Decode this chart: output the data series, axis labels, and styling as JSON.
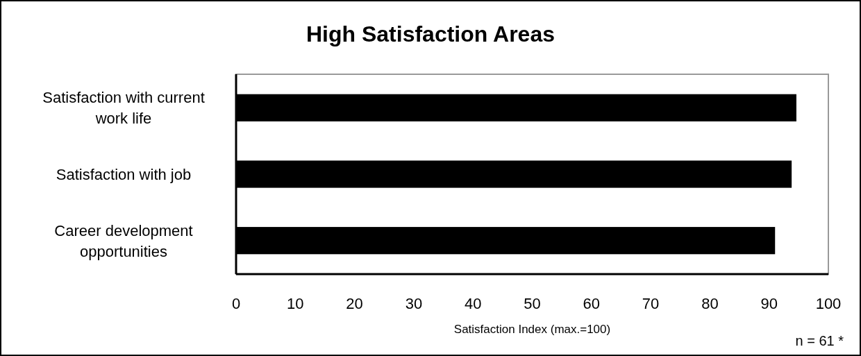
{
  "chart_data": {
    "type": "bar",
    "title": "High Satisfaction Areas",
    "orientation": "horizontal",
    "categories": [
      "Satisfaction with current work life",
      "Satisfaction with job",
      "Career development opportunities"
    ],
    "values": [
      94.6,
      93.8,
      91.0
    ],
    "color": "#000000",
    "xlim": [
      0,
      100
    ],
    "xticks": [
      0,
      10,
      20,
      30,
      40,
      50,
      60,
      70,
      80,
      90,
      100
    ],
    "xlabel": "Satisfaction Index (max.=100)",
    "grid": false,
    "annotations": [
      "n = 61 *"
    ]
  }
}
